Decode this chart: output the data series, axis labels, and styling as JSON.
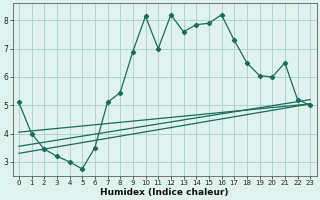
{
  "main_x": [
    0,
    1,
    2,
    3,
    4,
    5,
    6,
    7,
    8,
    9,
    10,
    11,
    12,
    13,
    14,
    15,
    16,
    17,
    18,
    19,
    20,
    21,
    22,
    23
  ],
  "main_y": [
    5.1,
    4.0,
    3.45,
    3.2,
    3.0,
    2.75,
    3.5,
    5.1,
    5.45,
    6.9,
    8.15,
    7.0,
    8.2,
    7.6,
    7.85,
    7.9,
    8.2,
    7.3,
    6.5,
    6.05,
    6.0,
    6.5,
    5.2,
    5.0
  ],
  "line1_x": [
    0,
    23
  ],
  "line1_y": [
    3.3,
    5.05
  ],
  "line2_x": [
    0,
    23
  ],
  "line2_y": [
    3.55,
    5.2
  ],
  "line3_x": [
    0,
    23
  ],
  "line3_y": [
    4.05,
    5.05
  ],
  "color": "#1a6b5a",
  "bg_color": "#dff2ee",
  "grid_color": "#a8cfc8",
  "xlabel": "Humidex (Indice chaleur)",
  "xlim": [
    -0.5,
    23.5
  ],
  "ylim": [
    2.5,
    8.6
  ],
  "yticks": [
    3,
    4,
    5,
    6,
    7,
    8
  ],
  "xticks": [
    0,
    1,
    2,
    3,
    4,
    5,
    6,
    7,
    8,
    9,
    10,
    11,
    12,
    13,
    14,
    15,
    16,
    17,
    18,
    19,
    20,
    21,
    22,
    23
  ],
  "marker": "D",
  "markersize": 2.2,
  "linewidth": 0.9,
  "tick_fontsize": 5.0,
  "xlabel_fontsize": 6.5
}
